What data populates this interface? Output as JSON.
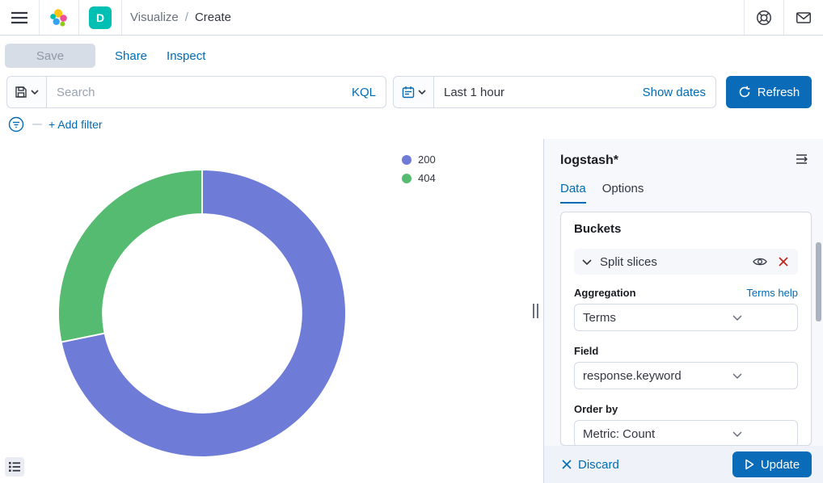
{
  "header": {
    "breadcrumb": {
      "section": "Visualize",
      "separator": "/",
      "current": "Create"
    },
    "space_badge": "D"
  },
  "toolbar": {
    "save_label": "Save",
    "share_label": "Share",
    "inspect_label": "Inspect"
  },
  "query_bar": {
    "search_placeholder": "Search",
    "language_label": "KQL",
    "time_range": "Last 1 hour",
    "show_dates_label": "Show dates",
    "refresh_label": "Refresh"
  },
  "filter_bar": {
    "add_filter_label": "+ Add filter"
  },
  "panel": {
    "title": "logstash*",
    "tabs": [
      {
        "label": "Data",
        "active": true
      },
      {
        "label": "Options",
        "active": false
      }
    ],
    "buckets": {
      "heading": "Buckets",
      "accordion_label": "Split slices",
      "fields": [
        {
          "label": "Aggregation",
          "value": "Terms",
          "help": "Terms help"
        },
        {
          "label": "Field",
          "value": "response.keyword"
        },
        {
          "label": "Order by",
          "value": "Metric: Count"
        }
      ]
    },
    "footer": {
      "discard_label": "Discard",
      "update_label": "Update"
    }
  },
  "colors": {
    "primary_fill": "#0a6cb8",
    "link_blue": "#006BB4",
    "danger_red": "#BD271E",
    "slice_200": "#6E7CD8",
    "slice_404": "#54BB70"
  },
  "chart_data": {
    "type": "pie",
    "donut": true,
    "title": "",
    "labels": [
      "200",
      "404"
    ],
    "values_pct": [
      71.8,
      28.2
    ],
    "colors": [
      "#6E7CD8",
      "#54BB70"
    ],
    "start_angle_deg": 0,
    "direction": "clockwise",
    "inner_radius_ratio": 0.69,
    "legend_position": "top-right",
    "legend": [
      "200",
      "404"
    ]
  }
}
